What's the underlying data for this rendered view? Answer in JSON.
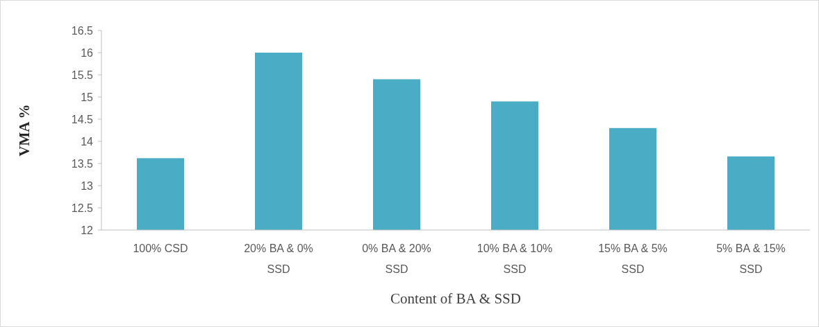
{
  "chart_data": {
    "type": "bar",
    "xlabel": "Content of BA & SSD",
    "ylabel": "VMA %",
    "categories": [
      "100% CSD",
      "20% BA & 0% SSD",
      "0% BA & 20% SSD",
      "10% BA & 10% SSD",
      "15% BA & 5% SSD",
      "5% BA & 15% SSD"
    ],
    "values": [
      13.62,
      16.0,
      15.4,
      14.9,
      14.3,
      13.66
    ],
    "color": "#4bacc6",
    "ylim": [
      12,
      16.5
    ],
    "yticks": [
      12,
      12.5,
      13,
      13.5,
      14,
      14.5,
      15,
      15.5,
      16,
      16.5
    ],
    "grid": false
  }
}
